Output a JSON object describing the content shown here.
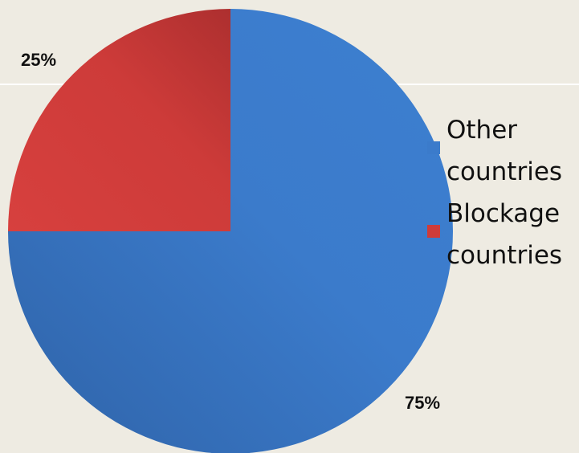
{
  "chart_data": {
    "type": "pie",
    "slices": [
      {
        "label": "Other countries",
        "value": 75,
        "color": "#3b7bcb"
      },
      {
        "label": "Blockage countries",
        "value": 25,
        "color": "#cf3c3a"
      }
    ],
    "data_labels": [
      "75%",
      "25%"
    ],
    "legend": {
      "placement": "right",
      "entries": [
        "Other\ncountries",
        "Blockage\ncountries"
      ]
    },
    "start_angle_deg": 0,
    "direction": "clockwise"
  }
}
